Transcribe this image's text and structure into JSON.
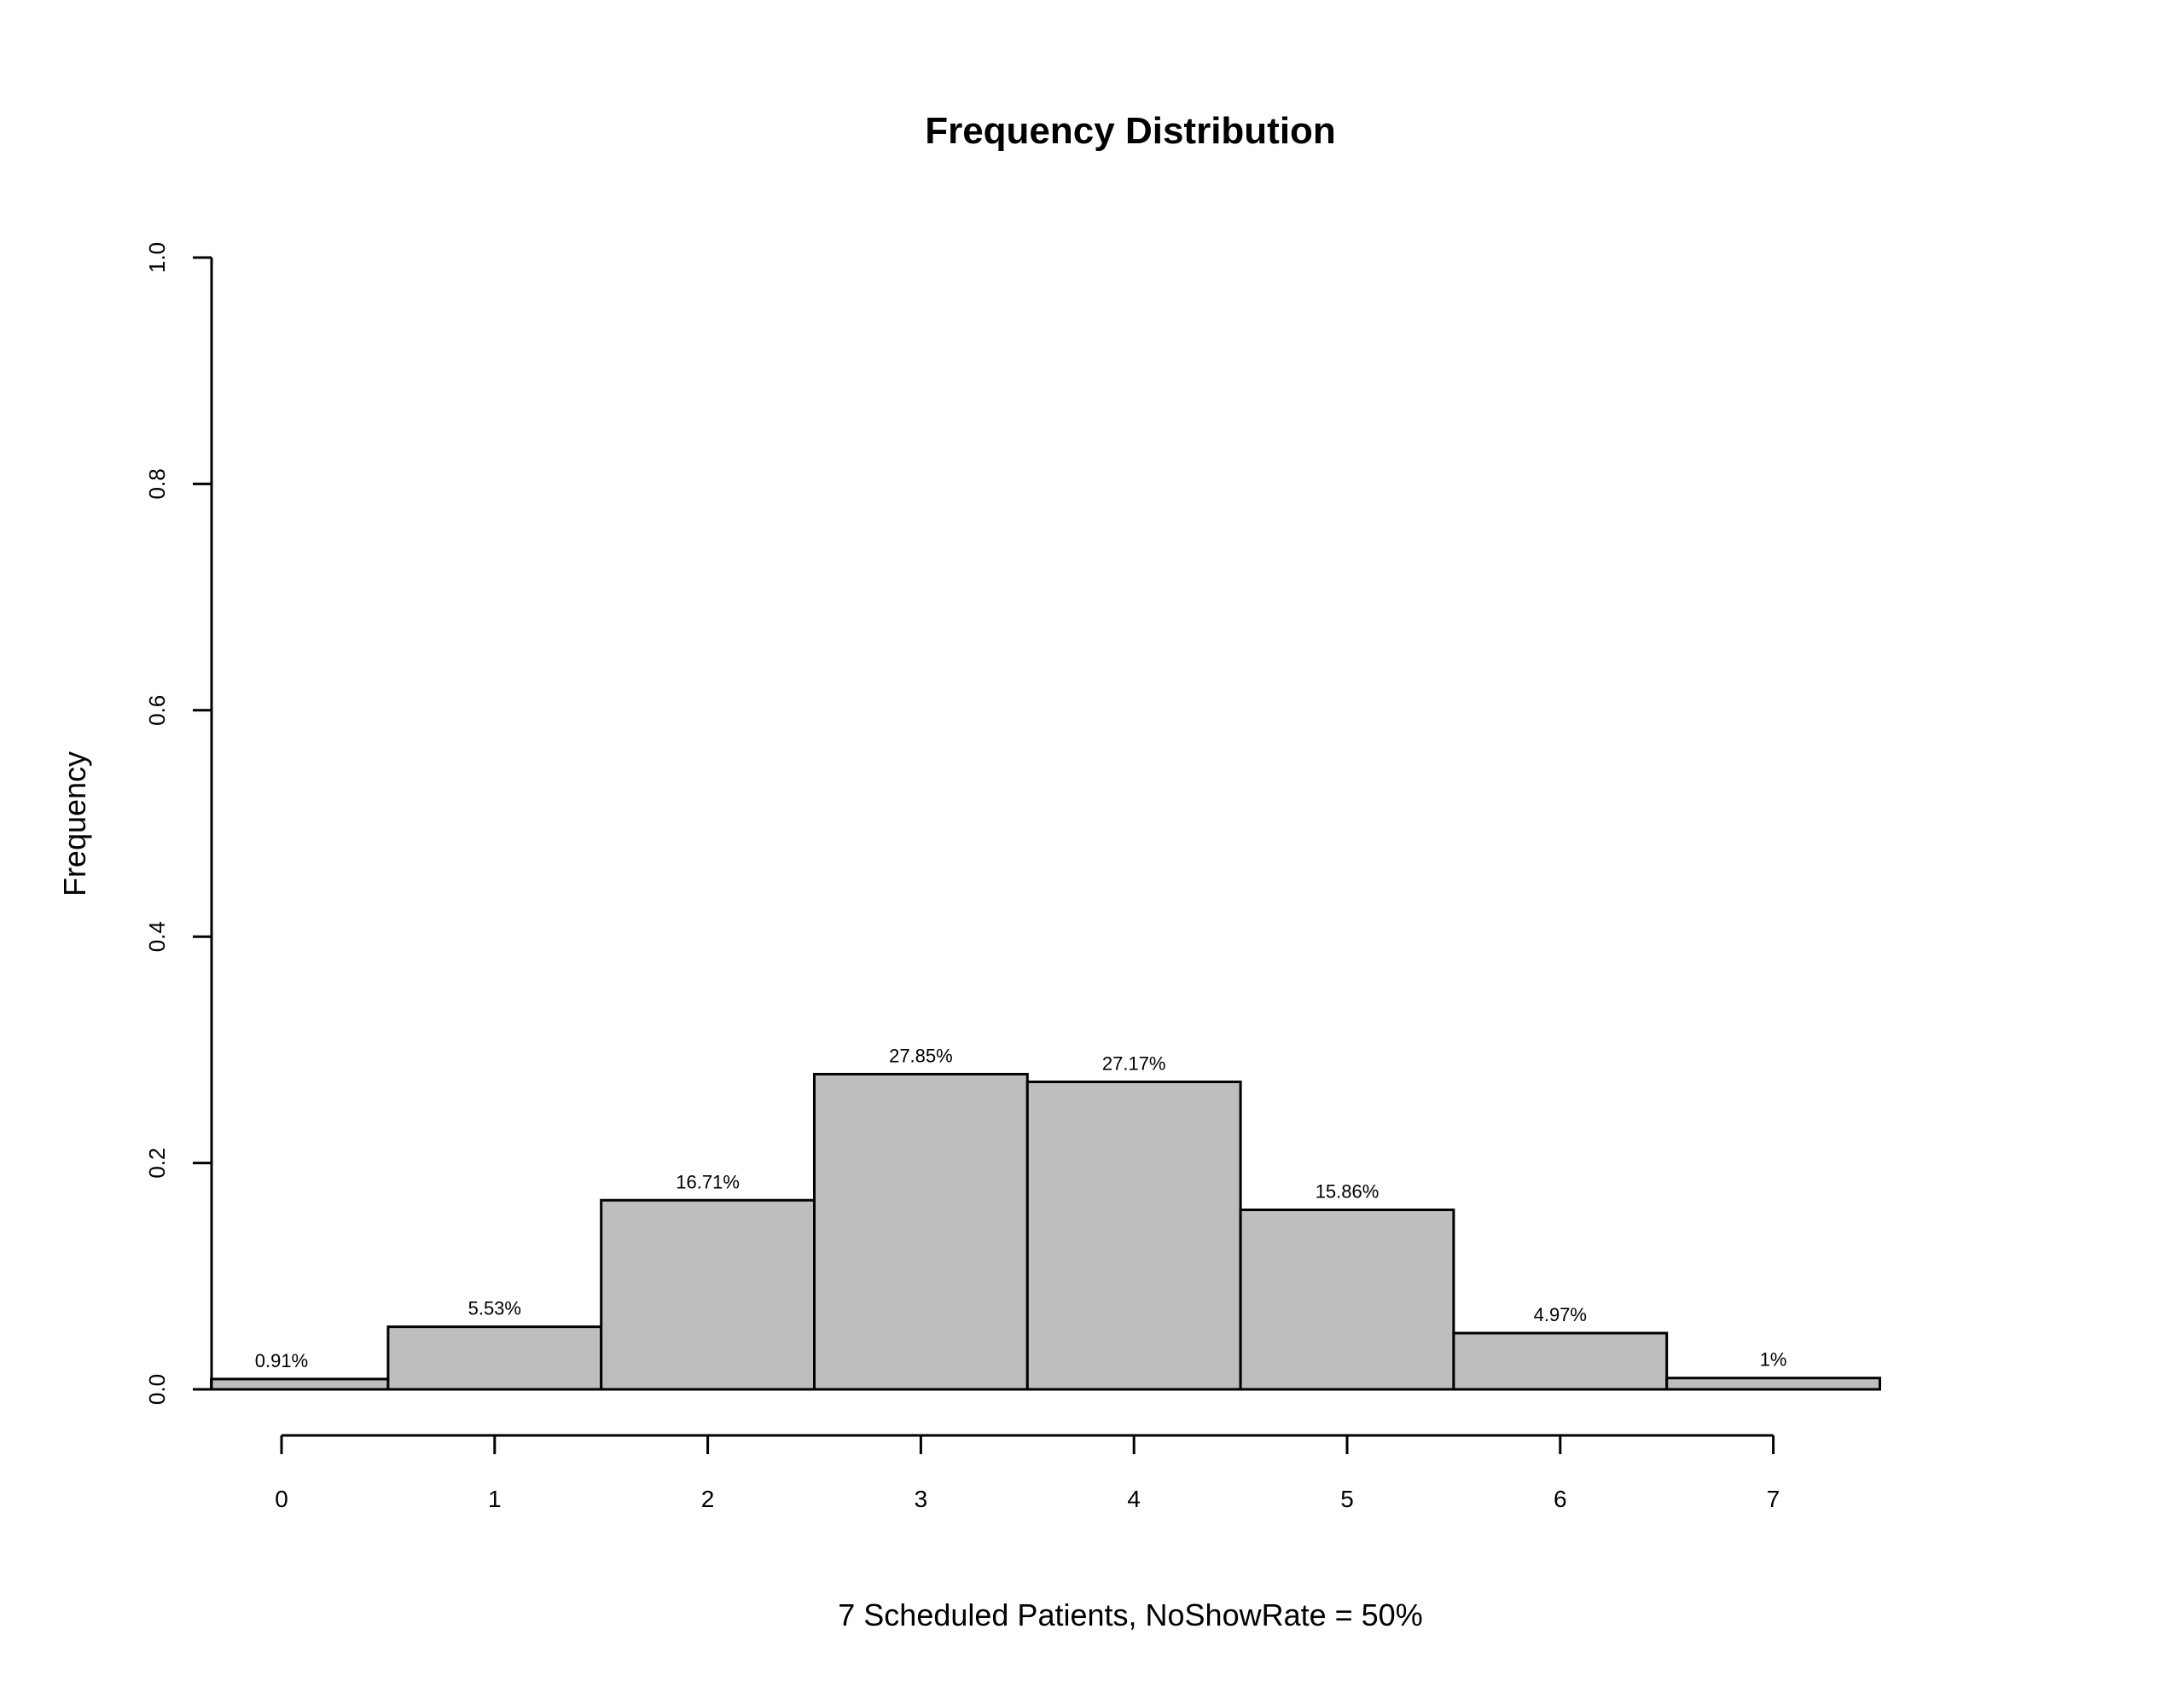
{
  "chart_data": {
    "type": "bar",
    "title": "Frequency Distribution",
    "xlabel": "7 Scheduled Patients,  NoShowRate = 50%",
    "ylabel": "Frequency",
    "categories": [
      "0",
      "1",
      "2",
      "3",
      "4",
      "5",
      "6",
      "7"
    ],
    "values": [
      0.0091,
      0.0553,
      0.1671,
      0.2785,
      0.2717,
      0.1586,
      0.0497,
      0.01
    ],
    "data_labels": [
      "0.91%",
      "5.53%",
      "16.71%",
      "27.85%",
      "27.17%",
      "15.86%",
      "4.97%",
      "1%"
    ],
    "ylim": [
      0,
      1.0
    ],
    "xlim": [
      -0.33,
      7.5
    ],
    "yticks": [
      "0.0",
      "0.2",
      "0.4",
      "0.6",
      "0.8",
      "1.0"
    ],
    "ytick_values": [
      0,
      0.2,
      0.4,
      0.6,
      0.8,
      1.0
    ],
    "bar_color": "#bebebe",
    "grid": false
  }
}
